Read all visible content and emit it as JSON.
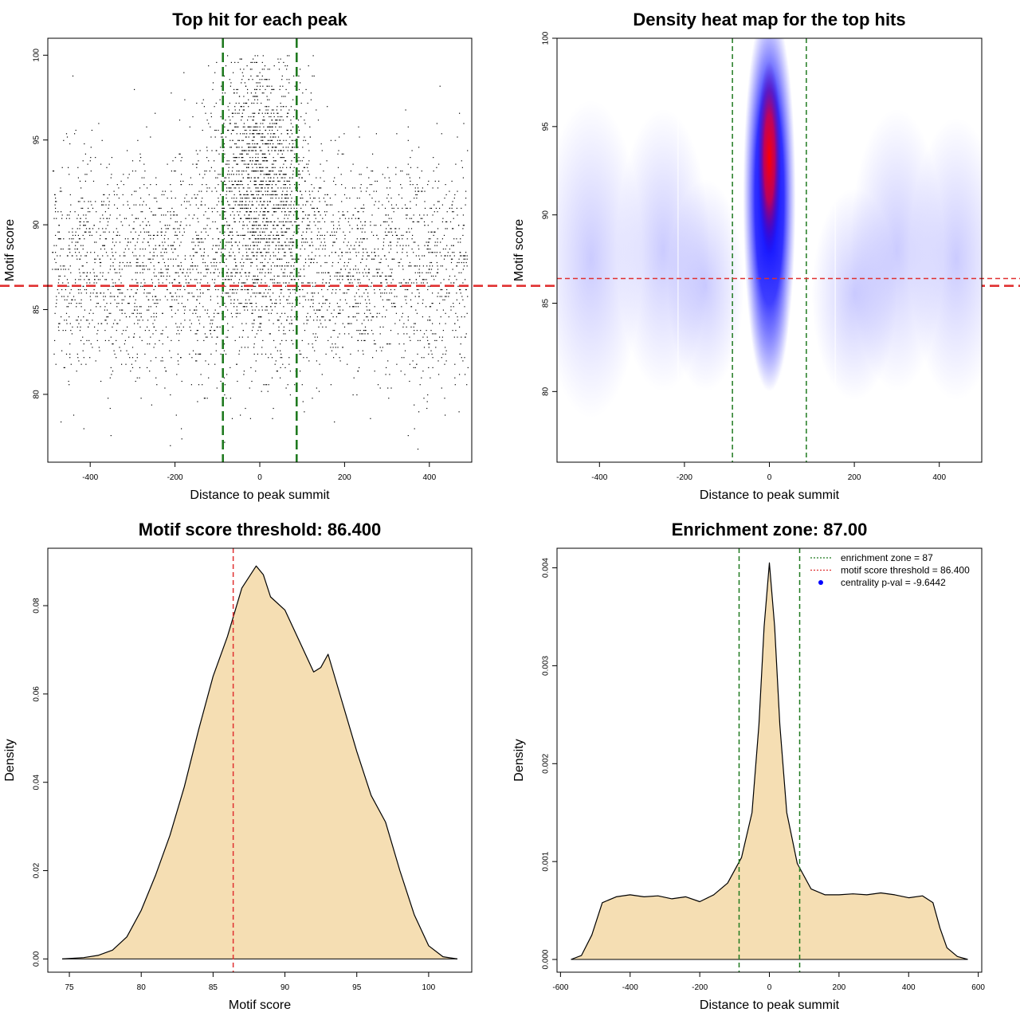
{
  "colors": {
    "threshold_line": "#e03030",
    "zone_line": "#1f7a1f",
    "density_fill": "#f5deb3",
    "heat_low": "#ffffff",
    "heat_mid": "#0000ff",
    "heat_high": "#ff0000",
    "point": "#000000"
  },
  "chart_data": [
    {
      "type": "scatter",
      "title": "Top hit for each peak",
      "xlabel": "Distance to peak summit",
      "ylabel": "Motif score",
      "xlim": [
        -500,
        500
      ],
      "ylim": [
        76,
        101
      ],
      "xticks": [
        "-400",
        "-200",
        "0",
        "200",
        "400"
      ],
      "yticks": [
        "80",
        "85",
        "90",
        "95",
        "100"
      ],
      "hlines": [
        {
          "y": 86.4,
          "color": "threshold"
        }
      ],
      "vlines": [
        {
          "x": -87,
          "color": "zone"
        },
        {
          "x": 87,
          "color": "zone"
        }
      ],
      "point_distribution": {
        "background_x_range": [
          -490,
          490
        ],
        "background_mode": 87.5,
        "central_mode": 93,
        "central_width": 60
      }
    },
    {
      "type": "heatmap",
      "title": "Density heat map for the top hits",
      "xlabel": "Distance to peak summit",
      "ylabel": "Motif score",
      "xlim": [
        -500,
        500
      ],
      "ylim": [
        76,
        100
      ],
      "xticks": [
        "-400",
        "-200",
        "0",
        "200",
        "400"
      ],
      "yticks": [
        "80",
        "85",
        "90",
        "95",
        "100"
      ],
      "hlines": [
        {
          "y": 86.4,
          "color": "threshold"
        }
      ],
      "vlines": [
        {
          "x": -87,
          "color": "zone"
        },
        {
          "x": 87,
          "color": "zone"
        }
      ],
      "hotspot": {
        "x": 0,
        "y": 93.2
      }
    },
    {
      "type": "area",
      "title": "Motif score threshold: 86.400",
      "xlabel": "Motif score",
      "ylabel": "Density",
      "xlim": [
        73.5,
        103
      ],
      "ylim": [
        -0.003,
        0.093
      ],
      "xticks": [
        "75",
        "80",
        "85",
        "90",
        "95",
        "100"
      ],
      "yticks": [
        "0.00",
        "0.02",
        "0.04",
        "0.06",
        "0.08"
      ],
      "vlines": [
        {
          "x": 86.4,
          "color": "threshold"
        }
      ],
      "x": [
        74.5,
        76,
        77,
        78,
        79,
        80,
        81,
        82,
        83,
        84,
        85,
        86,
        87,
        88,
        88.5,
        89,
        90,
        91,
        92,
        92.5,
        93,
        94,
        95,
        96,
        97,
        98,
        99,
        100,
        101,
        102
      ],
      "y": [
        0.0,
        0.0003,
        0.0008,
        0.002,
        0.005,
        0.011,
        0.019,
        0.028,
        0.039,
        0.052,
        0.064,
        0.073,
        0.084,
        0.089,
        0.087,
        0.082,
        0.079,
        0.072,
        0.065,
        0.066,
        0.069,
        0.058,
        0.047,
        0.037,
        0.031,
        0.02,
        0.01,
        0.003,
        0.0005,
        0.0
      ]
    },
    {
      "type": "area",
      "title": "Enrichment zone: 87.00",
      "xlabel": "Distance to peak summit",
      "ylabel": "Density",
      "xlim": [
        -610,
        610
      ],
      "ylim": [
        -0.00013,
        0.0042
      ],
      "xticks": [
        "-600",
        "-400",
        "-200",
        "0",
        "200",
        "400",
        "600"
      ],
      "yticks": [
        "0.000",
        "0.001",
        "0.002",
        "0.003",
        "0.004"
      ],
      "vlines": [
        {
          "x": -87,
          "color": "zone"
        },
        {
          "x": 87,
          "color": "zone"
        }
      ],
      "x": [
        -570,
        -540,
        -510,
        -480,
        -440,
        -400,
        -360,
        -320,
        -280,
        -240,
        -200,
        -160,
        -120,
        -80,
        -50,
        -30,
        -15,
        0,
        15,
        30,
        50,
        80,
        120,
        160,
        200,
        240,
        280,
        320,
        360,
        400,
        440,
        470,
        490,
        510,
        540,
        570
      ],
      "y": [
        0.0,
        4e-05,
        0.00025,
        0.00058,
        0.00064,
        0.00066,
        0.00064,
        0.00065,
        0.00062,
        0.00064,
        0.00059,
        0.00066,
        0.00078,
        0.00104,
        0.0015,
        0.0024,
        0.0034,
        0.00405,
        0.0034,
        0.0024,
        0.0015,
        0.00098,
        0.00072,
        0.00066,
        0.00066,
        0.00067,
        0.00066,
        0.00068,
        0.00066,
        0.00063,
        0.00065,
        0.00058,
        0.00032,
        0.00012,
        3e-05,
        0.0
      ],
      "legend": {
        "position": "top-right",
        "entries": [
          {
            "label": "enrichment zone = 87",
            "style": "dotted",
            "color": "zone"
          },
          {
            "label": "motif score threshold = 86.400",
            "style": "dotted",
            "color": "threshold"
          },
          {
            "label": "centrality p-val = -9.6442",
            "style": "point",
            "color": "#0000ff"
          }
        ]
      }
    }
  ]
}
